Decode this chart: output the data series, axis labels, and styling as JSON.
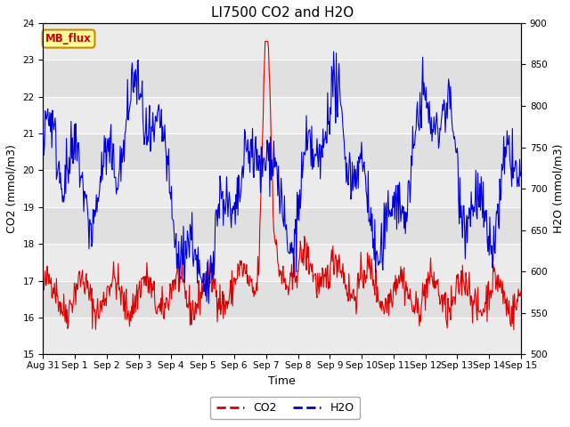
{
  "title": "LI7500 CO2 and H2O",
  "xlabel": "Time",
  "ylabel_left": "CO2 (mmol/m3)",
  "ylabel_right": "H2O (mmol/m3)",
  "ylim_left": [
    15.0,
    24.0
  ],
  "ylim_right": [
    500,
    900
  ],
  "yticks_left": [
    15.0,
    16.0,
    17.0,
    18.0,
    19.0,
    20.0,
    21.0,
    22.0,
    23.0,
    24.0
  ],
  "yticks_right": [
    500,
    550,
    600,
    650,
    700,
    750,
    800,
    850,
    900
  ],
  "co2_color": "#dd0000",
  "h2o_color": "#0000dd",
  "background_color": "#ffffff",
  "plot_bg_color": "#e0e0e0",
  "stripe_color": "#ebebeb",
  "mb_flux_label": "MB_flux",
  "mb_flux_bg": "#ffff99",
  "mb_flux_border": "#cc8800",
  "mb_flux_text_color": "#cc0000",
  "legend_co2_label": "CO2",
  "legend_h2o_label": "H2O",
  "n_points": 720,
  "total_days": 15,
  "title_fontsize": 11,
  "axis_label_fontsize": 9,
  "tick_fontsize": 7.5,
  "legend_fontsize": 9,
  "day_labels": [
    "Aug 31",
    "Sep 1",
    "Sep 2",
    "Sep 3",
    "Sep 4",
    "Sep 5",
    "Sep 6",
    "Sep 7",
    "Sep 8",
    "Sep 9",
    "Sep 9",
    "Sep 10",
    "Sep 11",
    "Sep 12",
    "Sep 13",
    "Sep 14",
    "Sep 15"
  ],
  "xtick_labels": [
    "Aug 31",
    "Sep 1",
    "Sep 2",
    "Sep 3",
    "Sep 4",
    "Sep 5",
    "Sep 6",
    "Sep 7",
    "Sep 8",
    "Sep 9",
    "Sep 9",
    "Sep 10",
    "Sep 11",
    "Sep 12",
    "Sep 13",
    "Sep 14",
    "Sep 15"
  ]
}
